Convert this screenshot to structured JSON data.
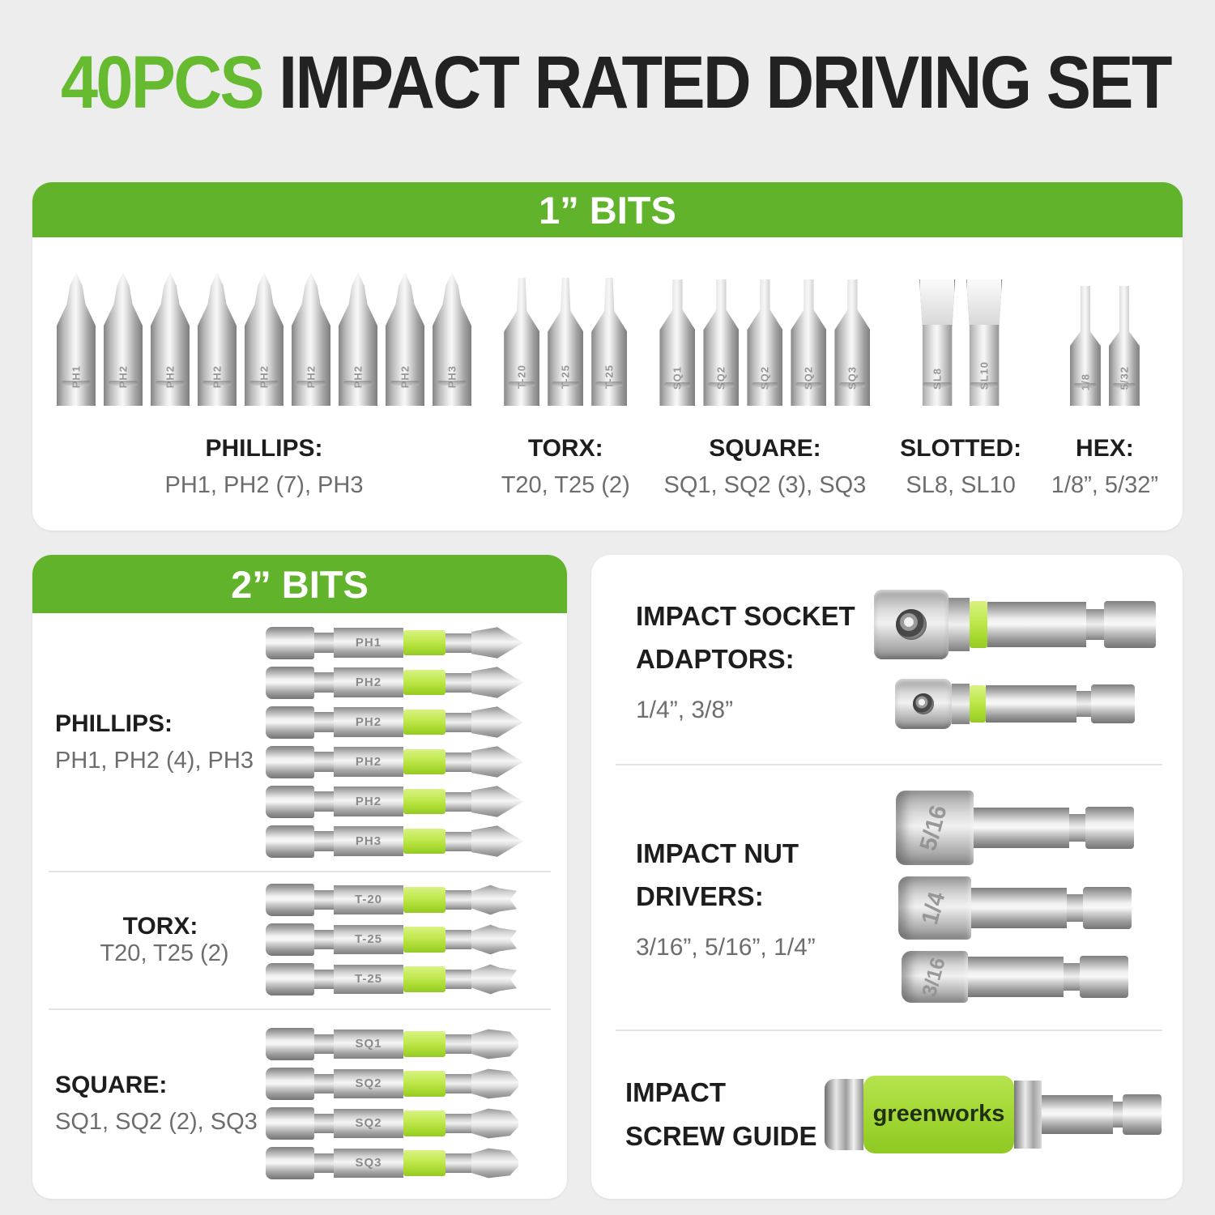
{
  "title": {
    "highlight": "40PCS",
    "rest": " IMPACT RATED DRIVING SET"
  },
  "colors": {
    "green": "#62b32c",
    "title_green": "#65ba30",
    "lime_band": "#b9e43c",
    "page_bg": "#ededed",
    "panel_bg": "#ffffff",
    "heading_text": "#1d1d1d",
    "detail_text": "#6d6d6d"
  },
  "panel_1in": {
    "header": "1” BITS",
    "groups": [
      {
        "id": "phillips",
        "name": "PHILLIPS:",
        "detail": "PH1, PH2 (7), PH3",
        "bits": [
          {
            "type": "phillips",
            "label": "PH1"
          },
          {
            "type": "phillips",
            "label": "PH2"
          },
          {
            "type": "phillips",
            "label": "PH2"
          },
          {
            "type": "phillips",
            "label": "PH2"
          },
          {
            "type": "phillips",
            "label": "PH2"
          },
          {
            "type": "phillips",
            "label": "PH2"
          },
          {
            "type": "phillips",
            "label": "PH2"
          },
          {
            "type": "phillips",
            "label": "PH2"
          },
          {
            "type": "phillips",
            "label": "PH3"
          }
        ]
      },
      {
        "id": "torx",
        "name": "TORX:",
        "detail": "T20, T25 (2)",
        "bits": [
          {
            "type": "torx",
            "label": "T-20"
          },
          {
            "type": "torx",
            "label": "T-25"
          },
          {
            "type": "torx",
            "label": "T-25"
          }
        ]
      },
      {
        "id": "square",
        "name": "SQUARE:",
        "detail": "SQ1, SQ2 (3), SQ3",
        "bits": [
          {
            "type": "square",
            "label": "SQ1"
          },
          {
            "type": "square",
            "label": "SQ2"
          },
          {
            "type": "square",
            "label": "SQ2"
          },
          {
            "type": "square",
            "label": "SQ2"
          },
          {
            "type": "square",
            "label": "SQ3"
          }
        ]
      },
      {
        "id": "slotted",
        "name": "SLOTTED:",
        "detail": "SL8, SL10",
        "bits": [
          {
            "type": "slotted",
            "label": "SL8"
          },
          {
            "type": "slotted",
            "label": "SL10"
          }
        ]
      },
      {
        "id": "hex",
        "name": "HEX:",
        "detail": "1/8”, 5/32”",
        "bits": [
          {
            "type": "hex",
            "label": "1/8"
          },
          {
            "type": "hex",
            "label": "5/32"
          }
        ]
      }
    ]
  },
  "panel_2in": {
    "header": "2” BITS",
    "sections": [
      {
        "id": "phillips",
        "name": "PHILLIPS:",
        "detail": "PH1, PH2 (4), PH3",
        "bits": [
          {
            "type": "ph",
            "label": "PH1"
          },
          {
            "type": "ph",
            "label": "PH2"
          },
          {
            "type": "ph",
            "label": "PH2"
          },
          {
            "type": "ph",
            "label": "PH2"
          },
          {
            "type": "ph",
            "label": "PH2"
          },
          {
            "type": "ph",
            "label": "PH3"
          }
        ]
      },
      {
        "id": "torx",
        "name": "TORX:",
        "detail": "T20, T25 (2)",
        "bits": [
          {
            "type": "tx",
            "label": "T-20"
          },
          {
            "type": "tx",
            "label": "T-25"
          },
          {
            "type": "tx",
            "label": "T-25"
          }
        ]
      },
      {
        "id": "square",
        "name": "SQUARE:",
        "detail": "SQ1, SQ2 (2), SQ3",
        "bits": [
          {
            "type": "sq",
            "label": "SQ1"
          },
          {
            "type": "sq",
            "label": "SQ2"
          },
          {
            "type": "sq",
            "label": "SQ2"
          },
          {
            "type": "sq",
            "label": "SQ3"
          }
        ]
      }
    ]
  },
  "accessories": {
    "socket_adaptors": {
      "title1": "IMPACT SOCKET",
      "title2": "ADAPTORS:",
      "detail": "1/4”, 3/8”",
      "items": [
        "3/8",
        "1/4"
      ]
    },
    "nut_drivers": {
      "title1": "IMPACT NUT",
      "title2": "DRIVERS:",
      "detail": "3/16”, 5/16”, 1/4”",
      "items": [
        "5/16",
        "1/4",
        "3/16"
      ]
    },
    "screw_guide": {
      "title1": "IMPACT",
      "title2": "SCREW GUIDE",
      "brand": "greenworks"
    }
  }
}
